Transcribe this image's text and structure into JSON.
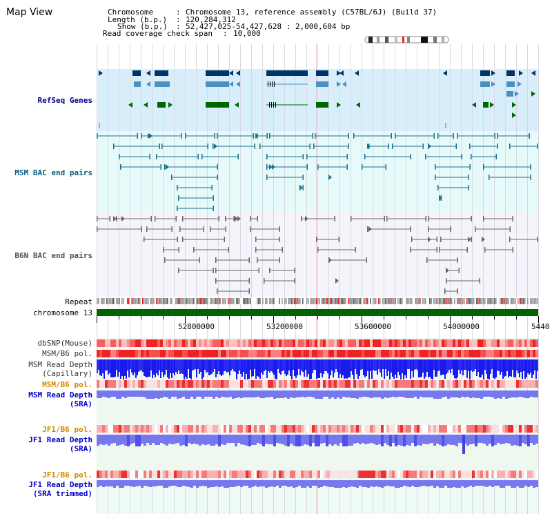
{
  "title": "Map View",
  "info": {
    "chromosome_label": "Chromosome",
    "chromosome_value": "Chromosome 13, reference assembly (C57BL/6J) (Build 37)",
    "length_label": "Length (b.p.)",
    "length_value": "120,284,312",
    "show_label": "Show (b.p.)",
    "show_value": "52,427,025-54,427,628 : 2,000,604 bp",
    "coverage_label": "Read coverage check span",
    "coverage_value": "10,000"
  },
  "tracks": {
    "refseq": "RefSeq Genes",
    "msm_bac": "MSM BAC end pairs",
    "b6n_bac": "B6N BAC end pairs",
    "repeat": "Repeat",
    "chromosome": "chromosome 13",
    "dbsnp": "dbSNP(Mouse)",
    "msm_b6_pol": "MSM/B6 pol.",
    "msm_read_depth_cap_1": "MSM Read Depth",
    "msm_read_depth_cap_2": "(Capillary)",
    "msm_b6_pol2": "MSM/B6 pol.",
    "msm_read_depth_sra_1": "MSM Read Depth",
    "msm_read_depth_sra_2": "(SRA)",
    "jf1_b6_pol": "JF1/B6 pol.",
    "jf1_read_depth_1": "JF1 Read Depth",
    "jf1_read_depth_2": "(SRA)",
    "jf1_b6_pol2": "JF1/B6 pol.",
    "jf1_read_depth_trim_1": "JF1 Read Depth",
    "jf1_read_depth_trim_2": "(SRA trimmed)"
  },
  "axis": {
    "ticks": [
      "52800000",
      "53200000",
      "53600000",
      "54000000",
      "5440"
    ]
  },
  "colors": {
    "refseq_bg": "#d8eefa",
    "bac_bg": "#e6fafa",
    "b6n_bg": "#f4f4fa",
    "gene_navy": "#003366",
    "gene_blue": "#4a90c0",
    "gene_green": "#006600",
    "bac_teal": "#1a6e8e",
    "bac_gray": "#666666",
    "chrom_green": "#006400",
    "pol_red": "#ee3333",
    "depth_blue": "#1a1aee",
    "depth_light": "#7777ee"
  }
}
